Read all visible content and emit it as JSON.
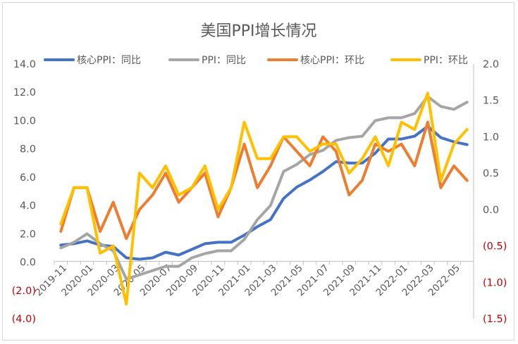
{
  "chart_data": {
    "type": "line",
    "title": "美国PPI增长情况",
    "x": [
      "2019-11",
      "2019-12",
      "2020-01",
      "2020-02",
      "2020-03",
      "2020-04",
      "2020-05",
      "2020-06",
      "2020-07",
      "2020-08",
      "2020-09",
      "2020-10",
      "2020-11",
      "2020-12",
      "2021-01",
      "2021-02",
      "2021-03",
      "2021-04",
      "2021-05",
      "2021-06",
      "2021-07",
      "2021-08",
      "2021-09",
      "2021-10",
      "2021-11",
      "2021-12",
      "2022-01",
      "2022-02",
      "2022-03",
      "2022-04",
      "2022-05",
      "2022-06"
    ],
    "x_tick_labels": [
      "2019-11",
      "2020-01",
      "2020-03",
      "2020-05",
      "2020-07",
      "2020-09",
      "2020-11",
      "2021-01",
      "2021-03",
      "2021-05",
      "2021-07",
      "2021-09",
      "2021-11",
      "2022-01",
      "2022-03",
      "2022-05"
    ],
    "y_left": {
      "range": [
        -4,
        14
      ],
      "ticks": [
        "(4.0)",
        "(2.0)",
        "0.0",
        "2.0",
        "4.0",
        "6.0",
        "8.0",
        "10.0",
        "12.0",
        "14.0"
      ]
    },
    "y_right": {
      "range": [
        -1.5,
        2.0
      ],
      "ticks": [
        "(1.5)",
        "(1.0)",
        "(0.5)",
        "0.0",
        "0.5",
        "1.0",
        "1.5",
        "2.0"
      ]
    },
    "grid": false,
    "legend_position": "top",
    "series": [
      {
        "name": "核心PPI：同比",
        "axis": "left",
        "color": "#4472c4",
        "values": [
          1.2,
          1.3,
          1.5,
          1.2,
          1.1,
          0.3,
          0.2,
          0.3,
          0.7,
          0.5,
          0.9,
          1.3,
          1.4,
          1.4,
          1.9,
          2.5,
          3.0,
          4.5,
          5.3,
          5.8,
          6.4,
          7.1,
          7.0,
          7.0,
          7.7,
          8.7,
          8.7,
          8.9,
          9.6,
          8.8,
          8.5,
          8.3
        ]
      },
      {
        "name": "PPI：同比",
        "axis": "left",
        "color": "#a5a5a5",
        "values": [
          1.0,
          1.4,
          2.0,
          1.3,
          0.8,
          -1.2,
          -0.9,
          -0.6,
          -0.3,
          -0.3,
          0.3,
          0.6,
          0.8,
          0.8,
          1.6,
          3.0,
          4.0,
          6.4,
          6.9,
          7.6,
          7.9,
          8.6,
          8.8,
          8.9,
          10.0,
          10.2,
          10.2,
          10.5,
          11.7,
          11.0,
          10.8,
          11.3
        ]
      },
      {
        "name": "核心PPI：环比",
        "axis": "right",
        "color": "#ed7d31",
        "values": [
          -0.3,
          0.3,
          0.3,
          -0.3,
          0.1,
          -0.4,
          0.0,
          0.2,
          0.5,
          0.1,
          0.3,
          0.5,
          -0.1,
          0.3,
          0.9,
          0.3,
          0.6,
          1.0,
          0.8,
          0.6,
          1.0,
          0.8,
          0.2,
          0.4,
          0.9,
          0.8,
          0.9,
          0.6,
          1.2,
          0.3,
          0.6,
          0.4
        ]
      },
      {
        "name": "PPI：环比",
        "axis": "right",
        "color": "#ffc000",
        "values": [
          -0.2,
          0.3,
          0.3,
          -0.6,
          -0.5,
          -1.3,
          0.5,
          0.3,
          0.6,
          0.2,
          0.3,
          0.6,
          0.0,
          0.3,
          1.2,
          0.7,
          0.7,
          1.0,
          1.0,
          0.8,
          0.9,
          0.9,
          0.5,
          0.7,
          1.0,
          0.6,
          1.2,
          1.1,
          1.6,
          0.4,
          0.9,
          1.1
        ]
      }
    ]
  }
}
